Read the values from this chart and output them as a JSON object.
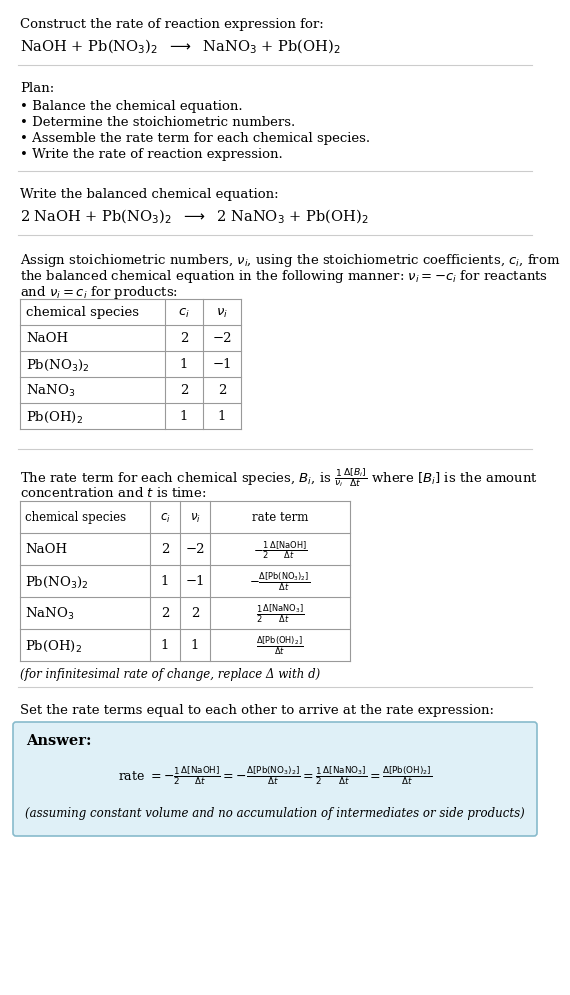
{
  "bg_color": "#ffffff",
  "text_color": "#000000",
  "table_border_color": "#999999",
  "answer_box_color": "#dff0f7",
  "answer_box_border": "#88bbcc",
  "title_line1": "Construct the rate of reaction expression for:",
  "reaction_unbalanced": "NaOH + Pb(NO$_3$)$_2$  $\\longrightarrow$  NaNO$_3$ + Pb(OH)$_2$",
  "plan_title": "Plan:",
  "plan_items": [
    "• Balance the chemical equation.",
    "• Determine the stoichiometric numbers.",
    "• Assemble the rate term for each chemical species.",
    "• Write the rate of reaction expression."
  ],
  "balanced_label": "Write the balanced chemical equation:",
  "reaction_balanced": "2 NaOH + Pb(NO$_3$)$_2$  $\\longrightarrow$  2 NaNO$_3$ + Pb(OH)$_2$",
  "stoich_intro_1": "Assign stoichiometric numbers, $\\nu_i$, using the stoichiometric coefficients, $c_i$, from",
  "stoich_intro_2": "the balanced chemical equation in the following manner: $\\nu_i = -c_i$ for reactants",
  "stoich_intro_3": "and $\\nu_i = c_i$ for products:",
  "table1_headers": [
    "chemical species",
    "$c_i$",
    "$\\nu_i$"
  ],
  "table1_rows": [
    [
      "NaOH",
      "2",
      "−2"
    ],
    [
      "Pb(NO$_3$)$_2$",
      "1",
      "−1"
    ],
    [
      "NaNO$_3$",
      "2",
      "2"
    ],
    [
      "Pb(OH)$_2$",
      "1",
      "1"
    ]
  ],
  "rate_term_intro_1": "The rate term for each chemical species, $B_i$, is $\\frac{1}{\\nu_i}\\frac{\\Delta[B_i]}{\\Delta t}$ where $[B_i]$ is the amount",
  "rate_term_intro_2": "concentration and $t$ is time:",
  "table2_headers": [
    "chemical species",
    "$c_i$",
    "$\\nu_i$",
    "rate term"
  ],
  "table2_rows": [
    [
      "NaOH",
      "2",
      "−2",
      "$-\\frac{1}{2}\\frac{\\Delta[\\mathrm{NaOH}]}{\\Delta t}$"
    ],
    [
      "Pb(NO$_3$)$_2$",
      "1",
      "−1",
      "$-\\frac{\\Delta[\\mathrm{Pb(NO_3)_2}]}{\\Delta t}$"
    ],
    [
      "NaNO$_3$",
      "2",
      "2",
      "$\\frac{1}{2}\\frac{\\Delta[\\mathrm{NaNO_3}]}{\\Delta t}$"
    ],
    [
      "Pb(OH)$_2$",
      "1",
      "1",
      "$\\frac{\\Delta[\\mathrm{Pb(OH)_2}]}{\\Delta t}$"
    ]
  ],
  "infinitesimal_note": "(for infinitesimal rate of change, replace Δ with 𝑑)",
  "set_equal_label": "Set the rate terms equal to each other to arrive at the rate expression:",
  "answer_label": "Answer:",
  "answer_rate": "rate $= -\\frac{1}{2}\\frac{\\Delta[\\mathrm{NaOH}]}{\\Delta t} = -\\frac{\\Delta[\\mathrm{Pb(NO_3)_2}]}{\\Delta t} = \\frac{1}{2}\\frac{\\Delta[\\mathrm{NaNO_3}]}{\\Delta t} = \\frac{\\Delta[\\mathrm{Pb(OH)_2}]}{\\Delta t}$",
  "answer_note": "(assuming constant volume and no accumulation of intermediates or side products)"
}
